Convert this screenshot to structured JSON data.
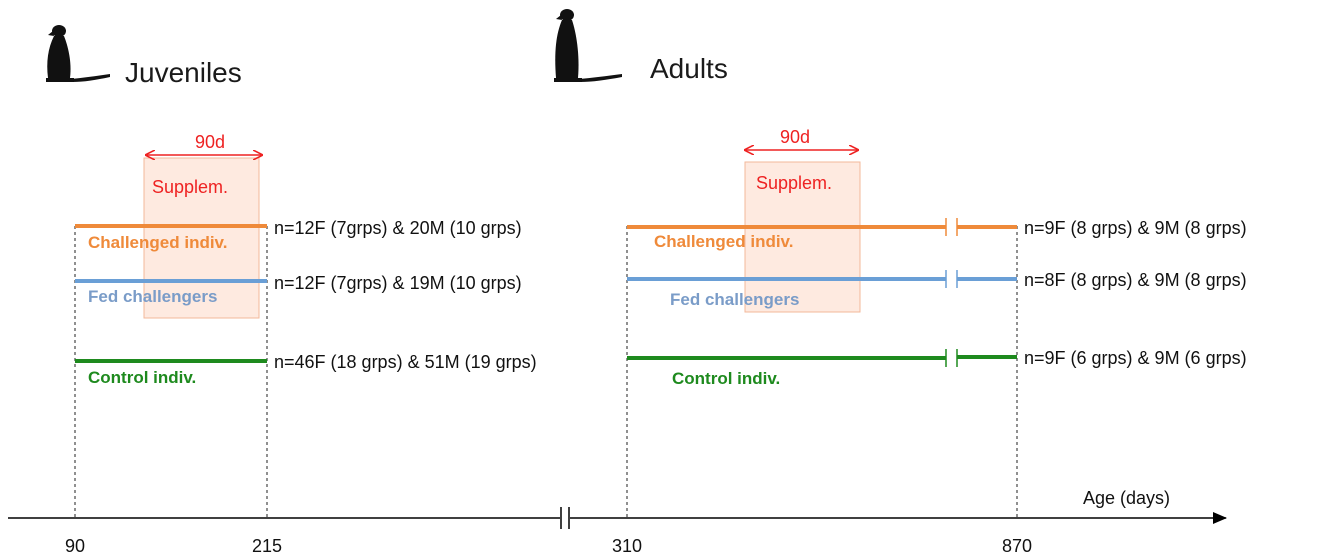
{
  "panels": [
    {
      "title": "Juveniles",
      "interval": "90d",
      "supplement": "Supplem.",
      "rows": [
        {
          "label": "Challenged indiv.",
          "n": "n=12F (7grps) & 20M (10 grps)",
          "color": "#ef8a3a"
        },
        {
          "label": "Fed challengers",
          "n": "n=12F (7grps) & 19M (10 grps)",
          "color": "#6a9fd6"
        },
        {
          "label": "Control indiv.",
          "n": "n=46F (18 grps) & 51M (19 grps)",
          "color": "#1e8a1e"
        }
      ]
    },
    {
      "title": "Adults",
      "interval": "90d",
      "supplement": "Supplem.",
      "rows": [
        {
          "label": "Challenged indiv.",
          "n": "n=9F (8 grps) & 9M (8 grps)",
          "color": "#ef8a3a"
        },
        {
          "label": "Fed challengers",
          "n": "n=8F (8 grps) & 9M (8 grps)",
          "color": "#6a9fd6"
        },
        {
          "label": "Control indiv.",
          "n": "n=9F (6 grps) & 9M (6 grps)",
          "color": "#1e8a1e"
        }
      ]
    }
  ],
  "axis": {
    "label": "Age (days)",
    "ticks": [
      "90",
      "215",
      "310",
      "870"
    ]
  },
  "colors": {
    "supplement_box": "#fde3d6",
    "accent_red": "#ee2222",
    "label_blue": "#7a9cc8"
  },
  "icon": "meerkat-silhouette-icon"
}
